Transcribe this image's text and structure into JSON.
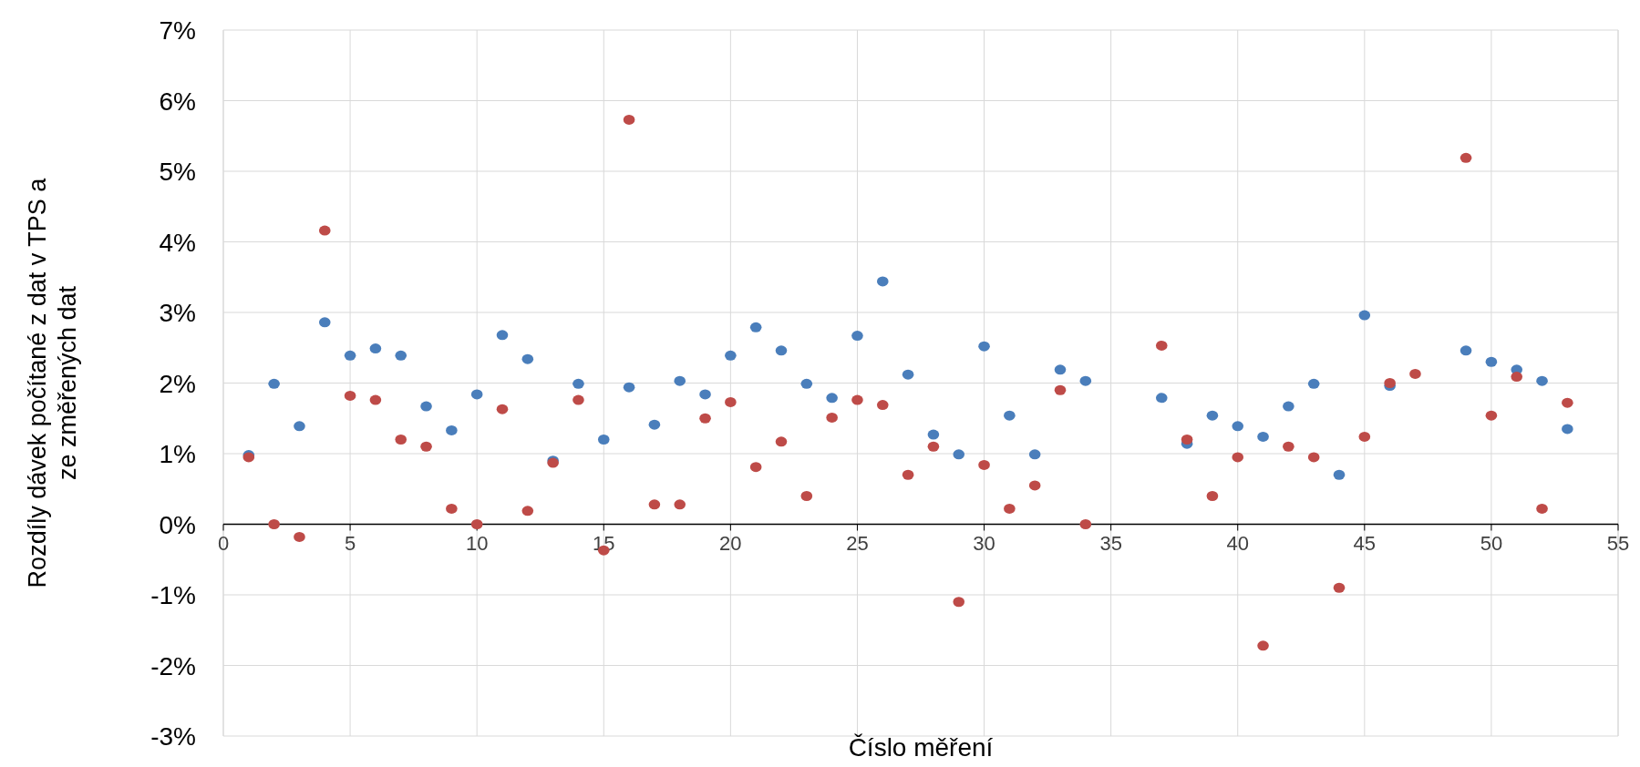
{
  "chart_data": {
    "type": "scatter",
    "xlabel": "Číslo měření",
    "ylabel": "Rozdíly dávek počítané z dat v TPS a\nze změřených dat",
    "xlim": [
      0,
      55
    ],
    "xticks": [
      0,
      5,
      10,
      15,
      20,
      25,
      30,
      35,
      40,
      45,
      50,
      55
    ],
    "ylim": [
      -3,
      7
    ],
    "yticks": [
      {
        "value": -3,
        "label": "-3%"
      },
      {
        "value": -2,
        "label": "-2%"
      },
      {
        "value": -1,
        "label": "-1%"
      },
      {
        "value": 0,
        "label": "0%"
      },
      {
        "value": 1,
        "label": "1%"
      },
      {
        "value": 2,
        "label": "2%"
      },
      {
        "value": 3,
        "label": "3%"
      },
      {
        "value": 4,
        "label": "4%"
      },
      {
        "value": 5,
        "label": "5%"
      },
      {
        "value": 6,
        "label": "6%"
      },
      {
        "value": 7,
        "label": "7%"
      }
    ],
    "grid": true,
    "marker": "circle",
    "series": [
      {
        "color": "#4a7ebb",
        "x": [
          1,
          2,
          3,
          4,
          5,
          6,
          7,
          8,
          9,
          10,
          11,
          12,
          13,
          14,
          15,
          16,
          17,
          18,
          19,
          20,
          21,
          22,
          23,
          24,
          25,
          26,
          27,
          28,
          29,
          30,
          31,
          32,
          33,
          34,
          37,
          38,
          39,
          40,
          41,
          42,
          43,
          44,
          45,
          46,
          49,
          50,
          51,
          52,
          53
        ],
        "values": [
          0.98,
          1.99,
          1.39,
          2.86,
          2.39,
          2.49,
          2.39,
          1.67,
          1.33,
          1.84,
          2.68,
          2.34,
          0.9,
          1.99,
          1.2,
          1.94,
          1.41,
          2.03,
          1.84,
          2.39,
          2.79,
          2.46,
          1.99,
          1.79,
          2.67,
          3.44,
          2.12,
          1.27,
          0.99,
          2.52,
          1.54,
          0.99,
          2.19,
          2.03,
          1.79,
          1.14,
          1.54,
          1.39,
          1.24,
          1.67,
          1.99,
          0.7,
          2.96,
          1.96,
          2.46,
          2.3,
          2.19,
          2.03,
          1.35
        ]
      },
      {
        "color": "#be4b48",
        "x": [
          1,
          2,
          3,
          4,
          5,
          6,
          7,
          8,
          9,
          10,
          11,
          12,
          13,
          14,
          15,
          16,
          17,
          18,
          19,
          20,
          21,
          22,
          23,
          24,
          25,
          26,
          27,
          28,
          29,
          30,
          31,
          32,
          33,
          34,
          37,
          38,
          39,
          40,
          41,
          42,
          43,
          44,
          45,
          46,
          47,
          49,
          50,
          51,
          52,
          53
        ],
        "values": [
          0.95,
          0,
          -0.18,
          4.16,
          1.82,
          1.76,
          1.2,
          1.1,
          0.22,
          0,
          1.63,
          0.19,
          0.87,
          1.76,
          -0.37,
          5.73,
          0.28,
          0.28,
          1.5,
          1.73,
          0.81,
          1.17,
          0.4,
          1.51,
          1.76,
          1.69,
          0.7,
          1.1,
          -1.1,
          0.84,
          0.22,
          0.55,
          1.9,
          0,
          2.53,
          1.2,
          0.4,
          0.95,
          -1.72,
          1.1,
          0.95,
          -0.9,
          1.24,
          2,
          2.13,
          5.19,
          1.54,
          2.09,
          0.22,
          1.72
        ]
      }
    ]
  }
}
